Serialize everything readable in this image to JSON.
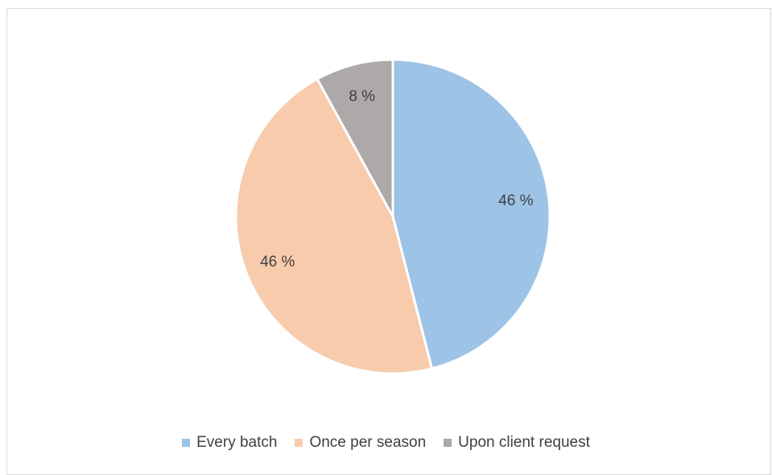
{
  "chart_data": {
    "type": "pie",
    "title": "",
    "categories": [
      "Every batch",
      "Once per season",
      "Upon client request"
    ],
    "values": [
      46,
      46,
      8
    ],
    "data_labels": [
      "46 %",
      "46 %",
      "8 %"
    ],
    "colors": [
      "#9DC3E6",
      "#F8CBAD",
      "#ADA9A8"
    ],
    "legend_position": "bottom",
    "start_angle": "top, clockwise"
  }
}
